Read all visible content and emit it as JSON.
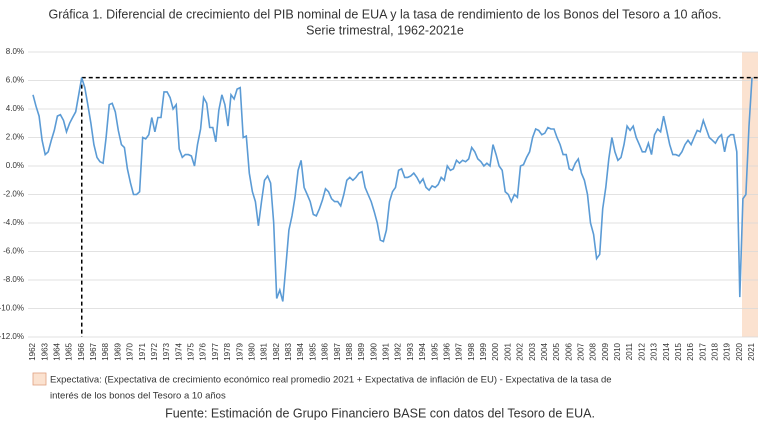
{
  "chart_data": {
    "type": "line",
    "title": "Gráfica 1. Diferencial de crecimiento del PIB nominal de EUA y la tasa de rendimiento de los Bonos del Tesoro a 10 años.",
    "subtitle": "Serie trimestral, 1962-2021e",
    "categories": [
      "1962",
      null,
      null,
      null,
      "1963",
      null,
      null,
      null,
      "1964",
      null,
      null,
      null,
      "1965",
      null,
      null,
      null,
      "1966",
      null,
      null,
      null,
      "1967",
      null,
      null,
      null,
      "1968",
      null,
      null,
      null,
      "1969",
      null,
      null,
      null,
      "1970",
      null,
      null,
      null,
      "1971",
      null,
      null,
      null,
      "1972",
      null,
      null,
      null,
      "1973",
      null,
      null,
      null,
      "1974",
      null,
      null,
      null,
      "1975",
      null,
      null,
      null,
      "1976",
      null,
      null,
      null,
      "1977",
      null,
      null,
      null,
      "1978",
      null,
      null,
      null,
      "1979",
      null,
      null,
      null,
      "1980",
      null,
      null,
      null,
      "1981",
      null,
      null,
      null,
      "1982",
      null,
      null,
      null,
      "1983",
      null,
      null,
      null,
      "1984",
      null,
      null,
      null,
      "1985",
      null,
      null,
      null,
      "1986",
      null,
      null,
      null,
      "1987",
      null,
      null,
      null,
      "1988",
      null,
      null,
      null,
      "1989",
      null,
      null,
      null,
      "1990",
      null,
      null,
      null,
      "1991",
      null,
      null,
      null,
      "1992",
      null,
      null,
      null,
      "1993",
      null,
      null,
      null,
      "1994",
      null,
      null,
      null,
      "1995",
      null,
      null,
      null,
      "1996",
      null,
      null,
      null,
      "1997",
      null,
      null,
      null,
      "1998",
      null,
      null,
      null,
      "1999",
      null,
      null,
      null,
      "2000",
      null,
      null,
      null,
      "2001",
      null,
      null,
      null,
      "2002",
      null,
      null,
      null,
      "2003",
      null,
      null,
      null,
      "2004",
      null,
      null,
      null,
      "2005",
      null,
      null,
      null,
      "2006",
      null,
      null,
      null,
      "2007",
      null,
      null,
      null,
      "2008",
      null,
      null,
      null,
      "2009",
      null,
      null,
      null,
      "2010",
      null,
      null,
      null,
      "2011",
      null,
      null,
      null,
      "2012",
      null,
      null,
      null,
      "2013",
      null,
      null,
      null,
      "2014",
      null,
      null,
      null,
      "2015",
      null,
      null,
      null,
      "2016",
      null,
      null,
      null,
      "2017",
      null,
      null,
      null,
      "2018",
      null,
      null,
      null,
      "2019",
      null,
      null,
      null,
      "2020",
      null,
      null,
      null,
      "2021"
    ],
    "values": [
      5.0,
      4.2,
      3.5,
      1.8,
      0.8,
      1.0,
      1.8,
      2.5,
      3.5,
      3.6,
      3.2,
      2.4,
      3.0,
      3.4,
      3.8,
      5.0,
      6.2,
      5.5,
      4.3,
      3.0,
      1.5,
      0.6,
      0.3,
      0.2,
      2.0,
      4.3,
      4.4,
      3.8,
      2.5,
      1.5,
      1.3,
      -0.2,
      -1.2,
      -2.0,
      -2.0,
      -1.8,
      2.0,
      1.9,
      2.2,
      3.4,
      2.4,
      3.4,
      3.4,
      5.2,
      5.2,
      4.8,
      4.0,
      4.3,
      1.2,
      0.6,
      0.8,
      0.8,
      0.7,
      0.0,
      1.5,
      2.6,
      4.8,
      4.4,
      2.7,
      2.7,
      1.7,
      3.9,
      5.0,
      4.3,
      2.8,
      5.0,
      4.7,
      5.4,
      5.5,
      2.0,
      2.1,
      -0.5,
      -1.8,
      -2.5,
      -4.2,
      -2.5,
      -1.0,
      -0.7,
      -1.2,
      -4.0,
      -9.3,
      -8.7,
      -9.5,
      -7.0,
      -4.5,
      -3.5,
      -2.2,
      -0.3,
      0.4,
      -1.5,
      -2.0,
      -2.5,
      -3.4,
      -3.5,
      -3.0,
      -2.4,
      -1.6,
      -1.8,
      -2.3,
      -2.5,
      -2.5,
      -2.8,
      -2.0,
      -1.0,
      -0.8,
      -1.0,
      -0.8,
      -0.5,
      -0.4,
      -1.5,
      -2.0,
      -2.5,
      -3.2,
      -4.0,
      -5.2,
      -5.3,
      -4.5,
      -2.5,
      -1.8,
      -1.5,
      -0.3,
      -0.2,
      -0.8,
      -0.8,
      -0.7,
      -0.5,
      -0.8,
      -1.2,
      -0.9,
      -1.5,
      -1.7,
      -1.4,
      -1.5,
      -1.3,
      -0.8,
      -1.0,
      0.0,
      -0.3,
      -0.2,
      0.4,
      0.2,
      0.4,
      0.3,
      0.5,
      1.3,
      1.0,
      0.5,
      0.3,
      0.0,
      0.2,
      0.0,
      1.5,
      0.8,
      0.0,
      -0.3,
      -1.8,
      -2.0,
      -2.5,
      -2.0,
      -2.2,
      0.0,
      0.1,
      0.6,
      1.0,
      2.0,
      2.6,
      2.5,
      2.2,
      2.3,
      2.7,
      2.6,
      2.6,
      2.0,
      1.5,
      0.8,
      0.8,
      -0.2,
      -0.3,
      0.2,
      0.5,
      -0.5,
      -1.0,
      -2.0,
      -4.0,
      -4.8,
      -6.5,
      -6.2,
      -3.0,
      -1.5,
      0.5,
      2.0,
      1.0,
      0.4,
      0.6,
      1.5,
      2.8,
      2.5,
      2.8,
      2.0,
      1.5,
      1.0,
      1.0,
      1.6,
      0.8,
      2.2,
      2.6,
      2.4,
      3.5,
      2.5,
      1.5,
      0.8,
      0.8,
      0.7,
      1.0,
      1.5,
      1.8,
      1.5,
      2.0,
      2.5,
      2.4,
      3.2,
      2.6,
      2.0,
      1.8,
      1.6,
      2.0,
      2.2,
      1.0,
      2.0,
      2.2,
      2.2,
      1.0,
      -9.2,
      -2.3,
      -2.0,
      2.8,
      6.2
    ],
    "color": "#5b9bd5",
    "ylim": [
      -12,
      8
    ],
    "yticks": [
      {
        "value": 8,
        "label": "8.0%"
      },
      {
        "value": 6,
        "label": "6.0%"
      },
      {
        "value": 4,
        "label": "4.0%"
      },
      {
        "value": 2,
        "label": "2.0%"
      },
      {
        "value": 0,
        "label": "0.0%"
      },
      {
        "value": -2,
        "label": "-2.0%"
      },
      {
        "value": -4,
        "label": "-4.0%"
      },
      {
        "value": -6,
        "label": "-6.0%"
      },
      {
        "value": -8,
        "label": "-8.0%"
      },
      {
        "value": -10,
        "label": "-10.0%"
      },
      {
        "value": -12,
        "label": "-12.0%"
      }
    ],
    "grid": true,
    "reference_y": 6.2,
    "reference_category": "1966",
    "shade_category": "2021",
    "shade_color": "#fbe2d0",
    "legend": {
      "text_1": "Expectativa: (Expectativa de crecimiento económico real promedio 2021 + Expectativa de inflación de EU) - Expectativa de la tasa de",
      "text_2": "interés de los bonos del Tesoro a 10 años"
    },
    "source": "Fuente: Estimación de Grupo Financiero BASE con datos del Tesoro de EUA."
  }
}
